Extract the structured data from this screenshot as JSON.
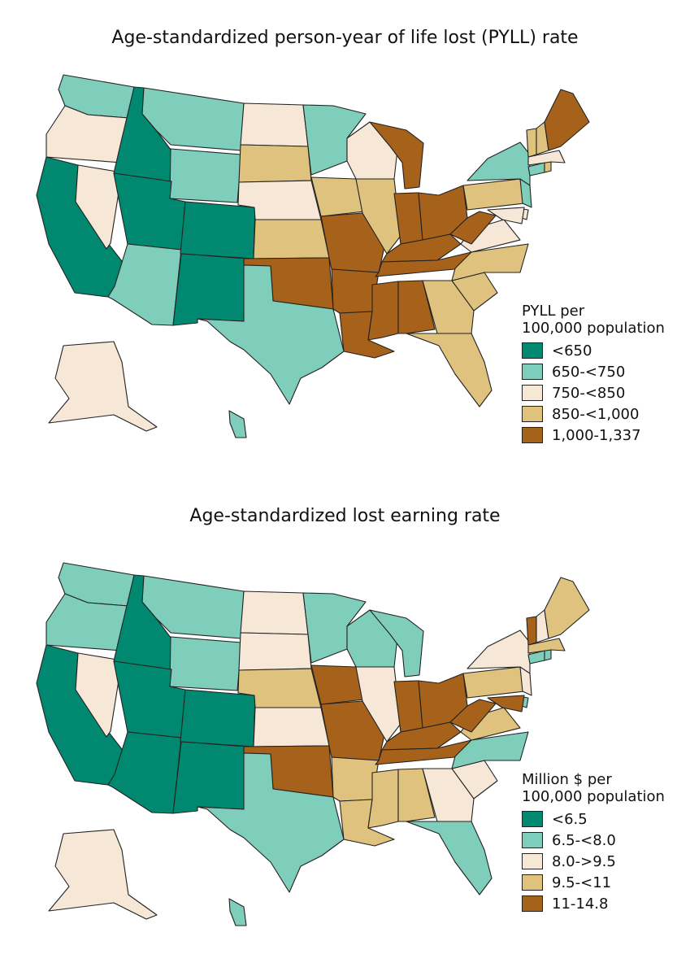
{
  "colors": {
    "c1": "#008870",
    "c2": "#7fcdbb",
    "c3": "#f6e7d7",
    "c4": "#dfc27d",
    "c5": "#a6611a"
  },
  "panels": [
    {
      "title": "Age-standardized person-year of life lost (PYLL) rate",
      "legend_title_line1": "PYLL per",
      "legend_title_line2": "100,000 population",
      "classes": [
        "<650",
        "650-<750",
        "750-<850",
        "850-<1,000",
        "1,000-1,337"
      ],
      "states": {
        "WA": 2,
        "OR": 3,
        "CA": 1,
        "NV": 3,
        "ID": 1,
        "MT": 2,
        "WY": 2,
        "UT": 1,
        "AZ": 2,
        "CO": 1,
        "NM": 1,
        "ND": 3,
        "SD": 4,
        "NE": 3,
        "KS": 4,
        "OK": 5,
        "TX": 2,
        "MN": 2,
        "IA": 4,
        "MO": 5,
        "AR": 5,
        "LA": 5,
        "WI": 3,
        "IL": 4,
        "MI": 5,
        "IN": 5,
        "OH": 5,
        "KY": 5,
        "TN": 5,
        "MS": 5,
        "AL": 5,
        "GA": 4,
        "FL": 4,
        "SC": 4,
        "NC": 4,
        "VA": 3,
        "WV": 5,
        "PA": 4,
        "NY": 2,
        "NJ": 2,
        "DE": 3,
        "MD": 3,
        "CT": 2,
        "RI": 4,
        "MA": 3,
        "VT": 4,
        "NH": 4,
        "ME": 5,
        "AK": 3,
        "HI": 2
      }
    },
    {
      "title": "Age-standardized lost earning rate",
      "legend_title_line1": "Million $ per",
      "legend_title_line2": "100,000 population",
      "classes": [
        "<6.5",
        "6.5-<8.0",
        "8.0->9.5",
        "9.5-<11",
        "11-14.8"
      ],
      "states": {
        "WA": 2,
        "OR": 2,
        "CA": 1,
        "NV": 3,
        "ID": 1,
        "MT": 2,
        "WY": 2,
        "UT": 1,
        "AZ": 1,
        "CO": 1,
        "NM": 1,
        "ND": 3,
        "SD": 3,
        "NE": 4,
        "KS": 3,
        "OK": 5,
        "TX": 2,
        "MN": 2,
        "IA": 5,
        "MO": 5,
        "AR": 4,
        "LA": 4,
        "WI": 2,
        "IL": 3,
        "MI": 2,
        "IN": 5,
        "OH": 5,
        "KY": 5,
        "TN": 5,
        "MS": 4,
        "AL": 4,
        "GA": 3,
        "FL": 2,
        "SC": 3,
        "NC": 2,
        "VA": 4,
        "WV": 5,
        "PA": 4,
        "NY": 3,
        "NJ": 3,
        "DE": 2,
        "MD": 5,
        "CT": 2,
        "RI": 2,
        "MA": 4,
        "VT": 5,
        "NH": 3,
        "ME": 4,
        "AK": 3,
        "HI": 2
      }
    }
  ]
}
